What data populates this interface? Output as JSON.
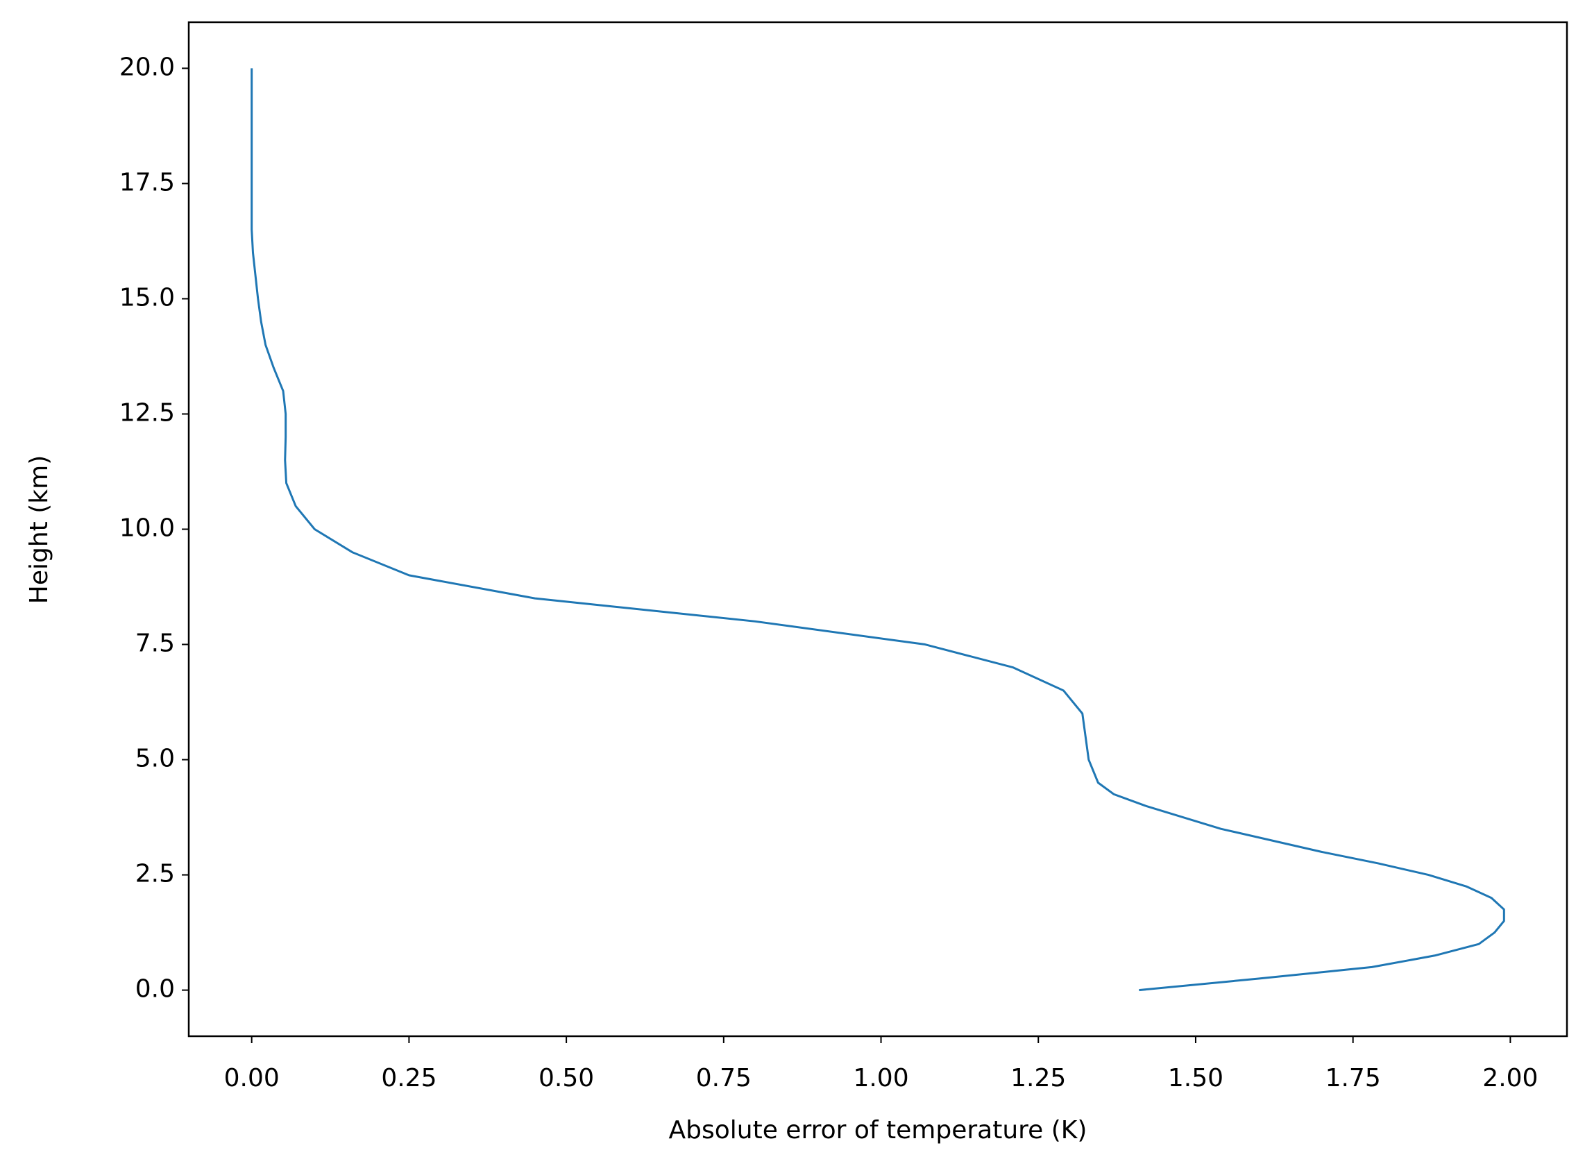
{
  "chart_data": {
    "type": "line",
    "x_label": "Absolute error of temperature (K)",
    "y_label": "Height (km)",
    "series": [
      {
        "color": "#1f77b4",
        "x": [
          1.41,
          1.6,
          1.78,
          1.88,
          1.95,
          1.975,
          1.99,
          1.99,
          1.97,
          1.93,
          1.87,
          1.79,
          1.7,
          1.54,
          1.42,
          1.37,
          1.345,
          1.33,
          1.325,
          1.32,
          1.29,
          1.21,
          1.07,
          0.8,
          0.45,
          0.25,
          0.16,
          0.1,
          0.07,
          0.055,
          0.053,
          0.054,
          0.054,
          0.05,
          0.035,
          0.022,
          0.015,
          0.01,
          0.002,
          0,
          0,
          0,
          0,
          0,
          0,
          0,
          0
        ],
        "y": [
          0,
          0.25,
          0.5,
          0.75,
          1.0,
          1.25,
          1.5,
          1.75,
          2.0,
          2.25,
          2.5,
          2.75,
          3.0,
          3.5,
          4.0,
          4.25,
          4.5,
          5.0,
          5.5,
          6.0,
          6.5,
          7.0,
          7.5,
          8.0,
          8.5,
          9.0,
          9.5,
          10.0,
          10.5,
          11.0,
          11.5,
          12.0,
          12.5,
          13.0,
          13.5,
          14.0,
          14.5,
          15.0,
          16.0,
          16.5,
          17.0,
          17.5,
          18.0,
          18.5,
          19.0,
          19.5,
          20.0
        ]
      }
    ],
    "xlim": [
      -0.1,
      2.09
    ],
    "ylim": [
      -1,
      21
    ],
    "xticks": [
      {
        "value": 0,
        "label": "0.00"
      },
      0.25,
      {
        "value": 0.5,
        "label": "0.50"
      },
      0.75,
      {
        "value": 1,
        "label": "1.00"
      },
      1.25,
      {
        "value": 1.5,
        "label": "1.50"
      },
      1.75,
      {
        "value": 2,
        "label": "2.00"
      }
    ],
    "yticks": [
      {
        "value": 0,
        "label": "0.0"
      },
      2.5,
      {
        "value": 5,
        "label": "5.0"
      },
      7.5,
      {
        "value": 10,
        "label": "10.0"
      },
      12.5,
      {
        "value": 15,
        "label": "15.0"
      },
      17.5,
      {
        "value": 20,
        "label": "20.0"
      }
    ]
  }
}
